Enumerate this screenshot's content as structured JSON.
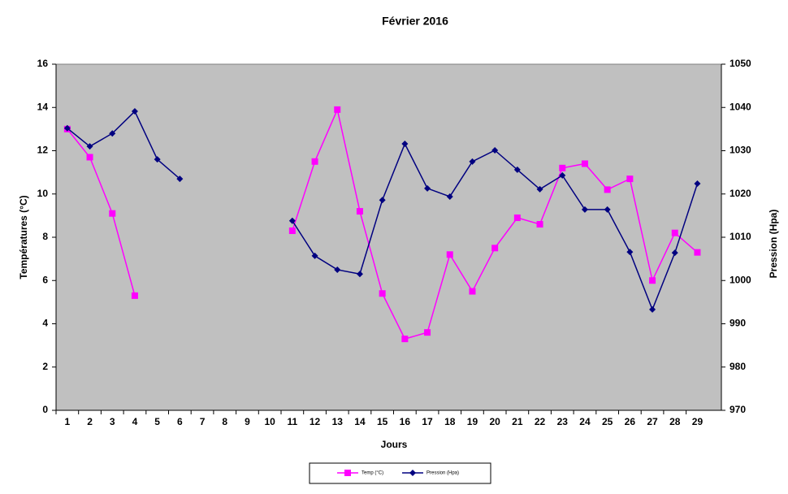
{
  "chart_data": {
    "type": "line",
    "title": "Février 2016",
    "x_label": "Jours",
    "y_label": "Températures (°C)",
    "y2_label": "Pression (Hpa)",
    "categories": [
      "1",
      "2",
      "3",
      "4",
      "5",
      "6",
      "7",
      "8",
      "9",
      "10",
      "11",
      "12",
      "13",
      "14",
      "15",
      "16",
      "17",
      "18",
      "19",
      "20",
      "21",
      "22",
      "23",
      "24",
      "25",
      "26",
      "27",
      "28",
      "29"
    ],
    "series": [
      {
        "name": "Temp (°C)",
        "color": "#ff00ff",
        "marker": "square",
        "values": [
          13,
          11.7,
          9.1,
          5.3,
          null,
          null,
          null,
          null,
          null,
          null,
          8.3,
          11.5,
          13.9,
          9.2,
          5.4,
          3.3,
          3.6,
          7.2,
          5.5,
          7.5,
          8.9,
          8.6,
          11.2,
          11.4,
          10.2,
          10.7,
          6.0,
          8.2,
          7.3
        ]
      },
      {
        "name": "Pression (Hpa)",
        "color": "#000080",
        "marker": "diamond",
        "axis": "y2",
        "values": [
          1035.2,
          1031,
          1034,
          1039.1,
          1028,
          1023.5,
          null,
          null,
          null,
          null,
          1013.8,
          1005.7,
          1002.5,
          1001.5,
          1018.6,
          1031.6,
          1021.3,
          1019.4,
          1027.5,
          1030.1,
          1025.6,
          1021.1,
          1024.3,
          1016.4,
          1016.4,
          1006.6,
          993.3,
          1006.4,
          1022.4
        ]
      }
    ],
    "ylim": [
      0,
      16
    ],
    "yticks": [
      0,
      2,
      4,
      6,
      8,
      10,
      12,
      14,
      16
    ],
    "y2lim": [
      970,
      1050
    ],
    "y2ticks": [
      970,
      980,
      990,
      1000,
      1010,
      1020,
      1030,
      1040,
      1050
    ],
    "plot_background": "#c0c0c0"
  }
}
